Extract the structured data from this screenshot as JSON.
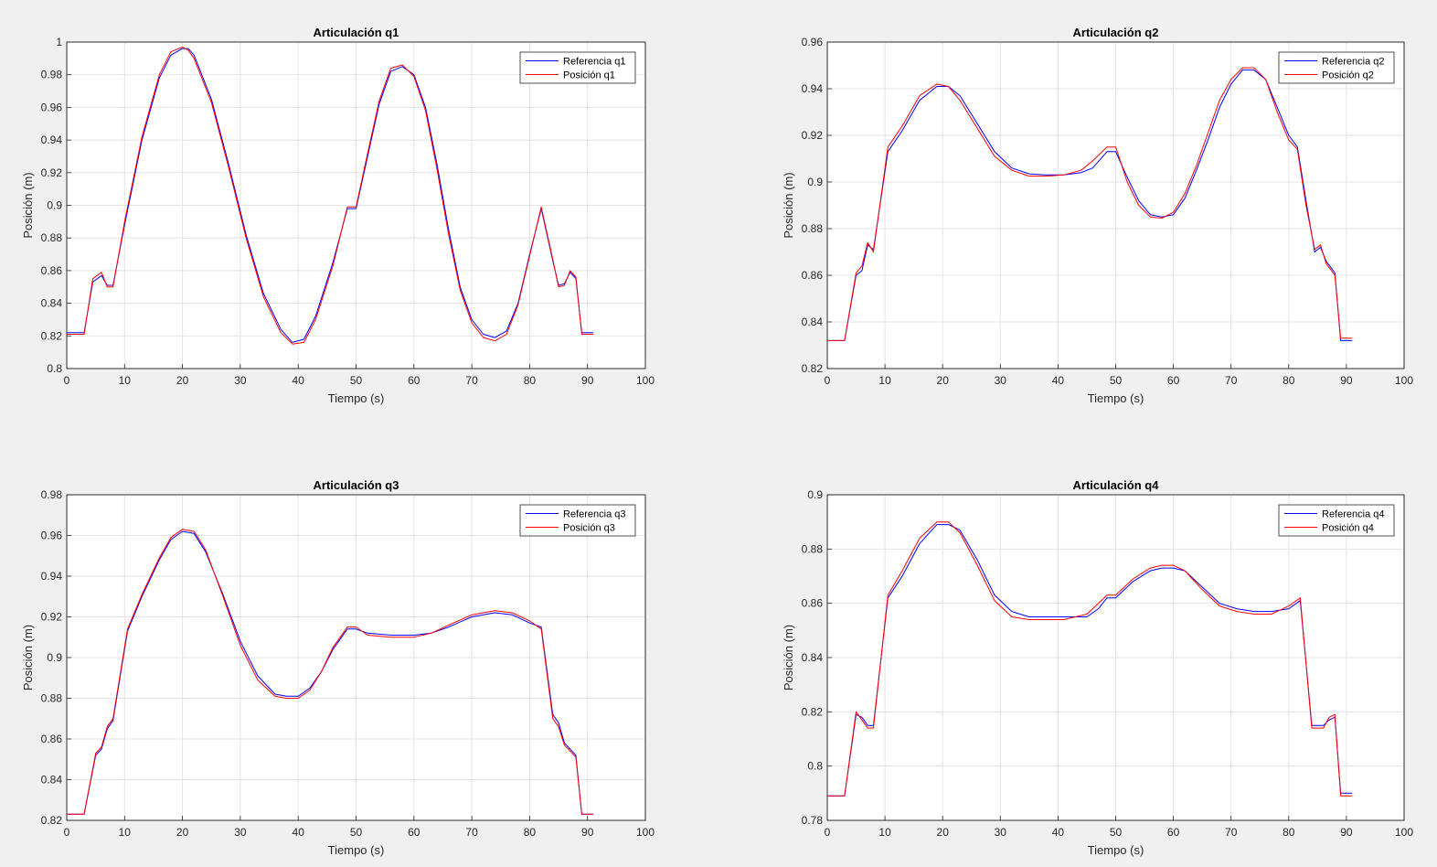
{
  "chart_data": [
    {
      "type": "line",
      "title": "Articulación q1",
      "xlabel": "Tiempo (s)",
      "ylabel": "Posición (m)",
      "xlim": [
        0,
        100
      ],
      "ylim": [
        0.8,
        1.0
      ],
      "xticks": [
        0,
        10,
        20,
        30,
        40,
        50,
        60,
        70,
        80,
        90,
        100
      ],
      "yticks": [
        0.8,
        0.82,
        0.84,
        0.86,
        0.88,
        0.9,
        0.92,
        0.94,
        0.96,
        0.98,
        1.0
      ],
      "yticklabels": [
        "0.8",
        "0.82",
        "0.84",
        "0.86",
        "0.88",
        "0.9",
        "0.92",
        "0.94",
        "0.96",
        "0.98",
        "1"
      ],
      "grid": true,
      "legend_position": "top-right",
      "series": [
        {
          "name": "Referencia q1",
          "color": "#0000ff",
          "x": [
            0,
            3,
            4.5,
            6,
            7,
            8,
            10,
            13,
            16,
            18,
            20,
            21,
            22,
            25,
            28,
            31,
            34,
            37,
            39,
            41,
            43,
            46,
            48.5,
            50,
            52,
            54,
            56,
            58,
            60,
            62,
            64,
            66,
            68,
            70,
            72,
            74,
            76,
            78,
            80,
            82,
            84,
            85,
            86,
            87,
            88,
            89,
            91
          ],
          "y": [
            0.822,
            0.822,
            0.853,
            0.857,
            0.851,
            0.851,
            0.888,
            0.94,
            0.978,
            0.992,
            0.996,
            0.996,
            0.992,
            0.965,
            0.925,
            0.882,
            0.846,
            0.824,
            0.816,
            0.818,
            0.832,
            0.865,
            0.898,
            0.898,
            0.93,
            0.962,
            0.982,
            0.985,
            0.98,
            0.96,
            0.925,
            0.885,
            0.85,
            0.83,
            0.821,
            0.819,
            0.823,
            0.84,
            0.87,
            0.898,
            0.866,
            0.851,
            0.852,
            0.859,
            0.855,
            0.822,
            0.822
          ]
        },
        {
          "name": "Posición q1",
          "color": "#ff0000",
          "x": [
            0,
            3,
            4.5,
            6,
            7,
            8,
            10,
            13,
            16,
            18,
            20,
            21,
            22,
            25,
            28,
            31,
            34,
            37,
            39,
            41,
            43,
            46,
            48.5,
            50,
            52,
            54,
            56,
            58,
            60,
            62,
            64,
            66,
            68,
            70,
            72,
            74,
            76,
            78,
            80,
            82,
            84,
            85,
            86,
            87,
            88,
            89,
            91
          ],
          "y": [
            0.821,
            0.821,
            0.855,
            0.859,
            0.85,
            0.85,
            0.89,
            0.942,
            0.98,
            0.994,
            0.997,
            0.995,
            0.99,
            0.963,
            0.923,
            0.88,
            0.844,
            0.822,
            0.815,
            0.816,
            0.83,
            0.863,
            0.899,
            0.899,
            0.932,
            0.964,
            0.984,
            0.986,
            0.979,
            0.958,
            0.922,
            0.882,
            0.848,
            0.828,
            0.819,
            0.817,
            0.821,
            0.839,
            0.869,
            0.899,
            0.867,
            0.85,
            0.851,
            0.86,
            0.856,
            0.821,
            0.821
          ]
        }
      ]
    },
    {
      "type": "line",
      "title": "Articulación q2",
      "xlabel": "Tiempo (s)",
      "ylabel": "Posición (m)",
      "xlim": [
        0,
        100
      ],
      "ylim": [
        0.82,
        0.96
      ],
      "xticks": [
        0,
        10,
        20,
        30,
        40,
        50,
        60,
        70,
        80,
        90,
        100
      ],
      "yticks": [
        0.82,
        0.84,
        0.86,
        0.88,
        0.9,
        0.92,
        0.94,
        0.96
      ],
      "yticklabels": [
        "0.82",
        "0.84",
        "0.86",
        "0.88",
        "0.9",
        "0.92",
        "0.94",
        "0.96"
      ],
      "grid": true,
      "legend_position": "top-right",
      "series": [
        {
          "name": "Referencia q2",
          "color": "#0000ff",
          "x": [
            0,
            3,
            5,
            6,
            7,
            8,
            10.5,
            13,
            16,
            19,
            21,
            23,
            26,
            29,
            32,
            35,
            38,
            41,
            44,
            46,
            48.5,
            50,
            52,
            54,
            56,
            58,
            60,
            62,
            64,
            66,
            68,
            70,
            72,
            74,
            76,
            78,
            80,
            81.5,
            83,
            84.5,
            85.5,
            86.5,
            88,
            89,
            91
          ],
          "y": [
            0.832,
            0.832,
            0.86,
            0.862,
            0.873,
            0.871,
            0.913,
            0.922,
            0.935,
            0.941,
            0.941,
            0.937,
            0.925,
            0.913,
            0.906,
            0.9035,
            0.903,
            0.903,
            0.904,
            0.906,
            0.913,
            0.913,
            0.902,
            0.892,
            0.886,
            0.885,
            0.886,
            0.893,
            0.905,
            0.918,
            0.932,
            0.942,
            0.948,
            0.948,
            0.944,
            0.932,
            0.92,
            0.915,
            0.892,
            0.87,
            0.872,
            0.866,
            0.861,
            0.832,
            0.832
          ]
        },
        {
          "name": "Posición q2",
          "color": "#ff0000",
          "x": [
            0,
            3,
            5,
            6,
            7,
            8,
            10.5,
            13,
            16,
            19,
            21,
            23,
            26,
            29,
            32,
            35,
            38,
            41,
            44,
            46,
            48.5,
            50,
            52,
            54,
            56,
            58,
            60,
            62,
            64,
            66,
            68,
            70,
            72,
            74,
            76,
            78,
            80,
            81.5,
            83,
            84.5,
            85.5,
            86.5,
            88,
            89,
            91
          ],
          "y": [
            0.832,
            0.832,
            0.861,
            0.864,
            0.874,
            0.87,
            0.915,
            0.924,
            0.937,
            0.942,
            0.941,
            0.935,
            0.923,
            0.911,
            0.905,
            0.9025,
            0.9025,
            0.903,
            0.905,
            0.909,
            0.915,
            0.915,
            0.9,
            0.89,
            0.885,
            0.8845,
            0.887,
            0.895,
            0.907,
            0.921,
            0.935,
            0.944,
            0.949,
            0.949,
            0.944,
            0.93,
            0.918,
            0.914,
            0.89,
            0.871,
            0.873,
            0.865,
            0.86,
            0.833,
            0.833
          ]
        }
      ]
    },
    {
      "type": "line",
      "title": "Articulación q3",
      "xlabel": "Tiempo (s)",
      "ylabel": "Posición (m)",
      "xlim": [
        0,
        100
      ],
      "ylim": [
        0.82,
        0.98
      ],
      "xticks": [
        0,
        10,
        20,
        30,
        40,
        50,
        60,
        70,
        80,
        90,
        100
      ],
      "yticks": [
        0.82,
        0.84,
        0.86,
        0.88,
        0.9,
        0.92,
        0.94,
        0.96,
        0.98
      ],
      "yticklabels": [
        "0.82",
        "0.84",
        "0.86",
        "0.88",
        "0.9",
        "0.92",
        "0.94",
        "0.96",
        "0.98"
      ],
      "grid": true,
      "legend_position": "top-right",
      "series": [
        {
          "name": "Referencia q3",
          "color": "#0000ff",
          "x": [
            0,
            3,
            5,
            6,
            7,
            8,
            10.5,
            13,
            16,
            18,
            20,
            22,
            24,
            27,
            30,
            33,
            36,
            38,
            40,
            42,
            44,
            46,
            48.5,
            50,
            52,
            56,
            60,
            63,
            66,
            70,
            74,
            77,
            80,
            82,
            84,
            85,
            86,
            87,
            88,
            89,
            91
          ],
          "y": [
            0.823,
            0.823,
            0.852,
            0.855,
            0.865,
            0.869,
            0.913,
            0.93,
            0.948,
            0.958,
            0.962,
            0.961,
            0.952,
            0.931,
            0.908,
            0.891,
            0.882,
            0.881,
            0.881,
            0.885,
            0.893,
            0.904,
            0.914,
            0.914,
            0.912,
            0.911,
            0.911,
            0.912,
            0.915,
            0.92,
            0.922,
            0.921,
            0.917,
            0.915,
            0.872,
            0.868,
            0.858,
            0.855,
            0.852,
            0.823,
            0.823
          ]
        },
        {
          "name": "Posición q3",
          "color": "#ff0000",
          "x": [
            0,
            3,
            5,
            6,
            7,
            8,
            10.5,
            13,
            16,
            18,
            20,
            22,
            24,
            27,
            30,
            33,
            36,
            38,
            40,
            42,
            44,
            46,
            48.5,
            50,
            52,
            56,
            60,
            63,
            66,
            70,
            74,
            77,
            80,
            82,
            84,
            85,
            86,
            87,
            88,
            89,
            91
          ],
          "y": [
            0.823,
            0.823,
            0.853,
            0.856,
            0.866,
            0.87,
            0.914,
            0.931,
            0.949,
            0.959,
            0.963,
            0.962,
            0.953,
            0.93,
            0.906,
            0.889,
            0.881,
            0.88,
            0.88,
            0.884,
            0.893,
            0.905,
            0.915,
            0.915,
            0.911,
            0.91,
            0.91,
            0.912,
            0.916,
            0.921,
            0.923,
            0.922,
            0.918,
            0.914,
            0.87,
            0.866,
            0.857,
            0.854,
            0.851,
            0.823,
            0.823
          ]
        }
      ]
    },
    {
      "type": "line",
      "title": "Articulación q4",
      "xlabel": "Tiempo (s)",
      "ylabel": "Posición (m)",
      "xlim": [
        0,
        100
      ],
      "ylim": [
        0.78,
        0.9
      ],
      "xticks": [
        0,
        10,
        20,
        30,
        40,
        50,
        60,
        70,
        80,
        90,
        100
      ],
      "yticks": [
        0.78,
        0.8,
        0.82,
        0.84,
        0.86,
        0.88,
        0.9
      ],
      "yticklabels": [
        "0.78",
        "0.8",
        "0.82",
        "0.84",
        "0.86",
        "0.88",
        "0.9"
      ],
      "grid": true,
      "legend_position": "top-right",
      "series": [
        {
          "name": "Referencia q4",
          "color": "#0000ff",
          "x": [
            0,
            3,
            5,
            6,
            7,
            8,
            10.5,
            13,
            16,
            19,
            21,
            23,
            26,
            29,
            32,
            35,
            38,
            41,
            45,
            47,
            48.5,
            50,
            53,
            56,
            58,
            60,
            62,
            65,
            68,
            71,
            74,
            77,
            80,
            82,
            84,
            85,
            86,
            87,
            88,
            89,
            91
          ],
          "y": [
            0.789,
            0.789,
            0.819,
            0.818,
            0.815,
            0.815,
            0.862,
            0.87,
            0.882,
            0.889,
            0.889,
            0.887,
            0.876,
            0.863,
            0.857,
            0.855,
            0.855,
            0.855,
            0.855,
            0.858,
            0.862,
            0.862,
            0.868,
            0.872,
            0.873,
            0.873,
            0.872,
            0.866,
            0.86,
            0.858,
            0.857,
            0.857,
            0.858,
            0.861,
            0.815,
            0.815,
            0.815,
            0.817,
            0.818,
            0.79,
            0.79
          ]
        },
        {
          "name": "Posición q4",
          "color": "#ff0000",
          "x": [
            0,
            3,
            5,
            6,
            7,
            8,
            10.5,
            13,
            16,
            19,
            21,
            23,
            26,
            29,
            32,
            35,
            38,
            41,
            45,
            47,
            48.5,
            50,
            53,
            56,
            58,
            60,
            62,
            65,
            68,
            71,
            74,
            77,
            80,
            82,
            84,
            85,
            86,
            87,
            88,
            89,
            91
          ],
          "y": [
            0.789,
            0.789,
            0.82,
            0.817,
            0.814,
            0.814,
            0.863,
            0.872,
            0.884,
            0.89,
            0.89,
            0.886,
            0.874,
            0.861,
            0.855,
            0.854,
            0.854,
            0.854,
            0.856,
            0.86,
            0.863,
            0.863,
            0.869,
            0.873,
            0.874,
            0.874,
            0.872,
            0.865,
            0.859,
            0.857,
            0.856,
            0.856,
            0.859,
            0.862,
            0.814,
            0.814,
            0.814,
            0.818,
            0.819,
            0.789,
            0.789
          ]
        }
      ]
    }
  ]
}
